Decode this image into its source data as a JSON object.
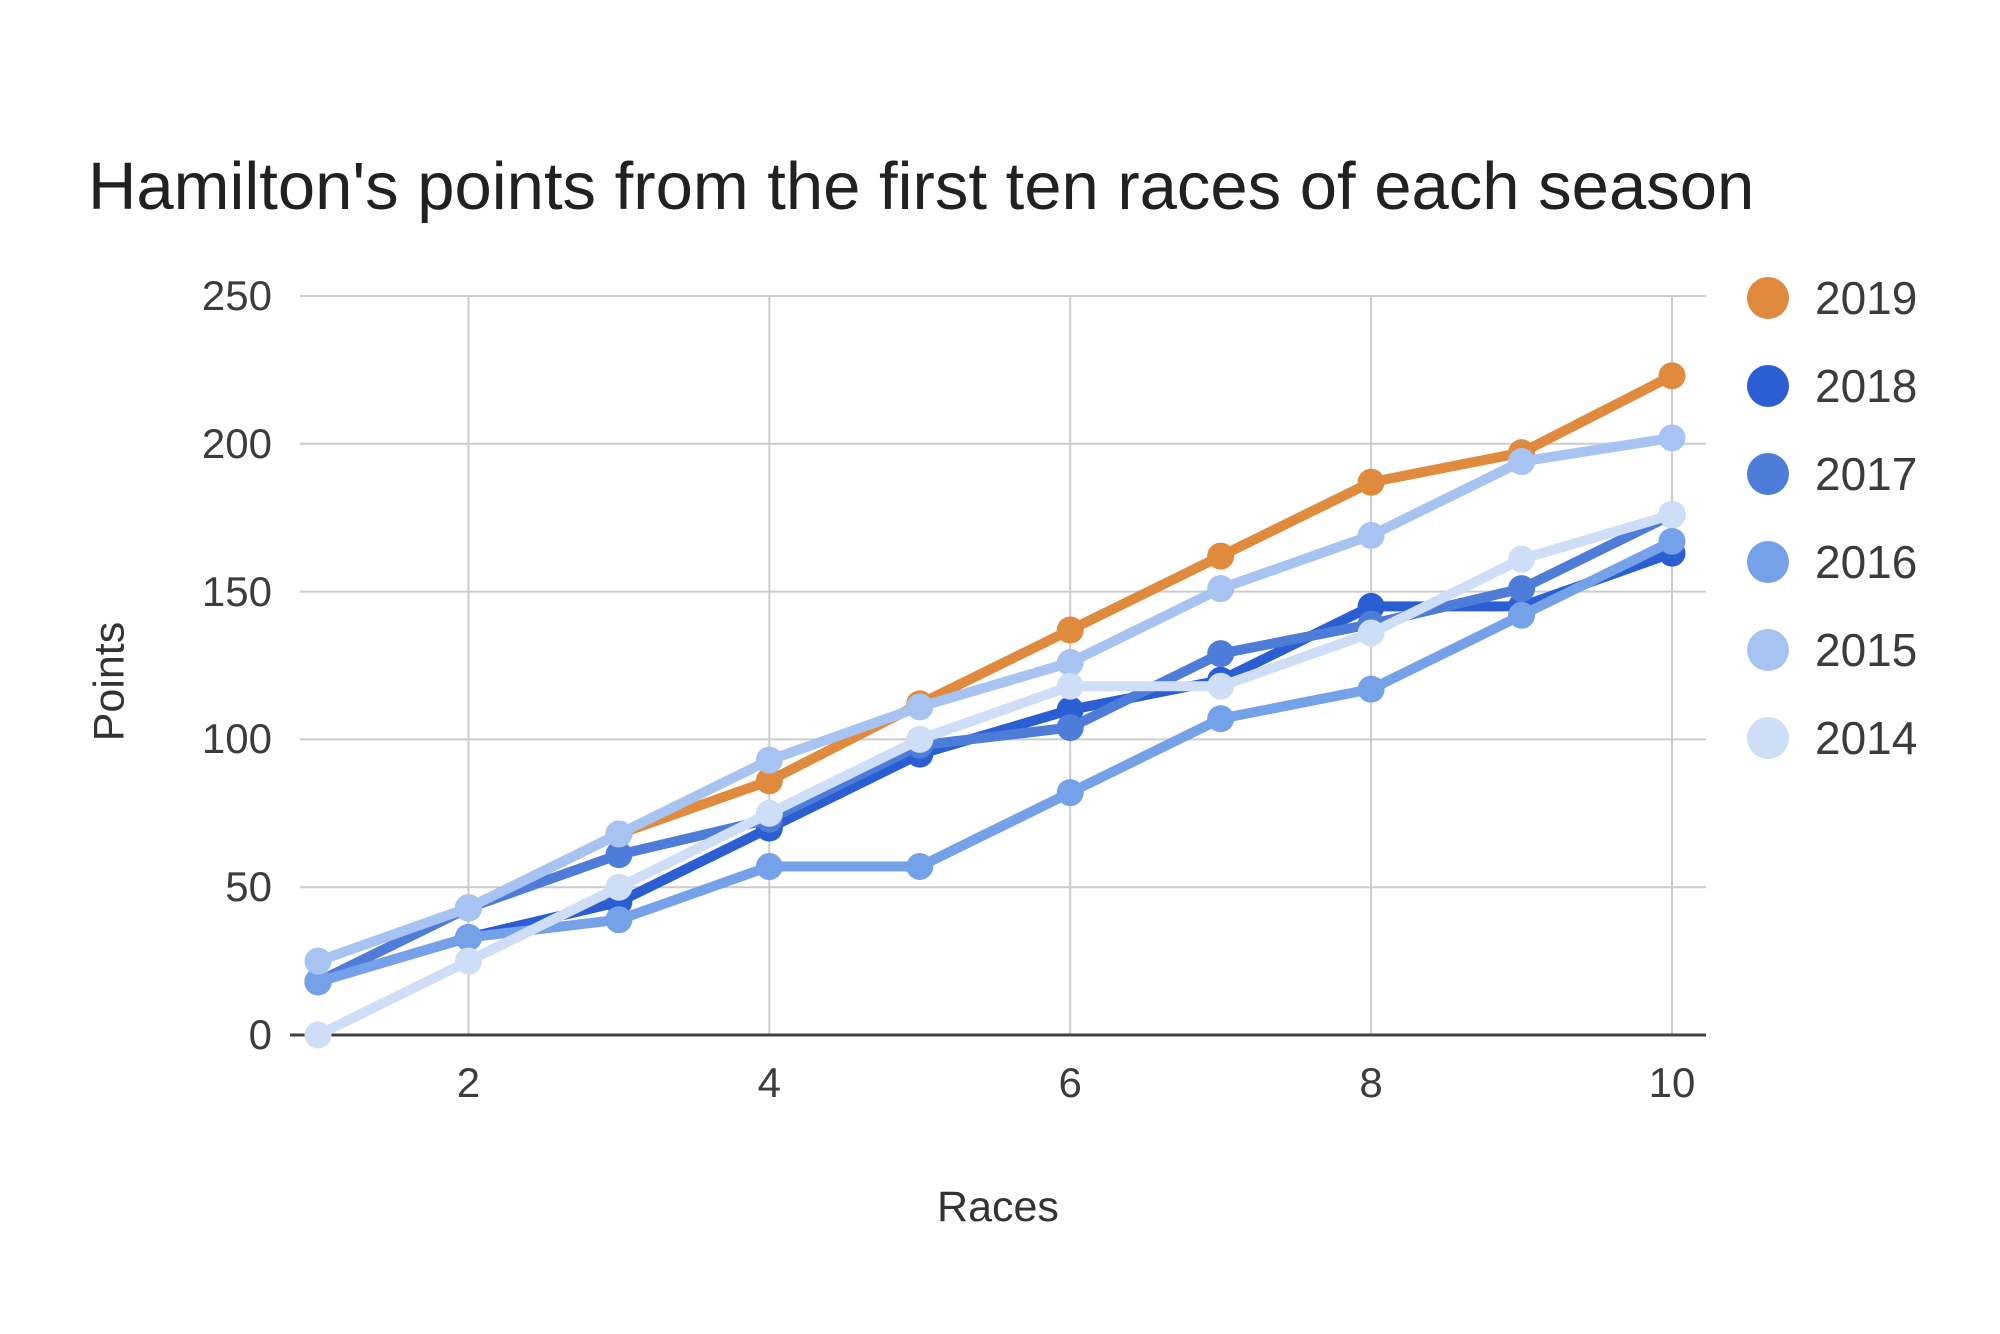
{
  "title": "Hamilton's points from the first ten races of each season",
  "chart_data": {
    "type": "line",
    "title": "Hamilton's points from the first ten races of each season",
    "xlabel": "Races",
    "ylabel": "Points",
    "x": [
      1,
      2,
      3,
      4,
      5,
      6,
      7,
      8,
      9,
      10
    ],
    "x_ticks": [
      2,
      4,
      6,
      8,
      10
    ],
    "y_ticks": [
      0,
      50,
      100,
      150,
      200,
      250
    ],
    "xlim": [
      1,
      10
    ],
    "ylim": [
      0,
      250
    ],
    "grid": true,
    "legend_position": "right",
    "series": [
      {
        "name": "2019",
        "color": "#e08a3d",
        "values": [
          18,
          43,
          68,
          86,
          112,
          137,
          162,
          187,
          197,
          223
        ]
      },
      {
        "name": "2018",
        "color": "#2a5ed2",
        "values": [
          18,
          33,
          45,
          70,
          95,
          110,
          120,
          145,
          145,
          163
        ]
      },
      {
        "name": "2017",
        "color": "#4d7dd8",
        "values": [
          18,
          43,
          61,
          73,
          98,
          104,
          129,
          139,
          151,
          176
        ]
      },
      {
        "name": "2016",
        "color": "#74a1e8",
        "values": [
          18,
          33,
          39,
          57,
          57,
          82,
          107,
          117,
          142,
          167
        ]
      },
      {
        "name": "2015",
        "color": "#a6c3f1",
        "values": [
          25,
          43,
          68,
          93,
          111,
          126,
          151,
          169,
          194,
          202
        ]
      },
      {
        "name": "2014",
        "color": "#cfdef7",
        "values": [
          0,
          25,
          50,
          75,
          100,
          118,
          118,
          136,
          161,
          176
        ]
      }
    ],
    "colors": {
      "gridline": "#cccccc",
      "axis_baseline": "#424242",
      "tick_text": "#3c3c3c",
      "title_text": "#212121"
    }
  }
}
